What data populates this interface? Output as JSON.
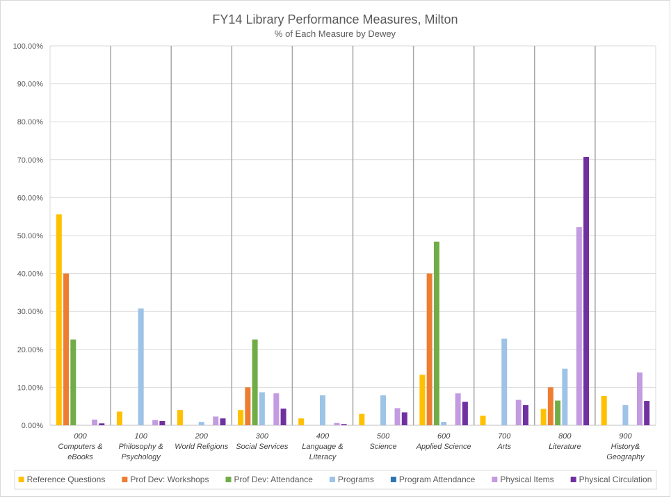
{
  "chart_data": {
    "type": "bar",
    "title": "FY14 Library Performance Measures, Milton",
    "subtitle": "% of Each Measure by Dewey",
    "xlabel": "",
    "ylabel": "",
    "ylim": [
      0,
      100
    ],
    "yticks": [
      "0.00%",
      "10.00%",
      "20.00%",
      "30.00%",
      "40.00%",
      "50.00%",
      "60.00%",
      "70.00%",
      "80.00%",
      "90.00%",
      "100.00%"
    ],
    "grid": true,
    "legend_position": "bottom",
    "categories": [
      {
        "code": "000",
        "name": [
          "Computers &",
          "eBooks"
        ]
      },
      {
        "code": "100",
        "name": [
          "Philosophy &",
          "Psychology"
        ]
      },
      {
        "code": "200",
        "name": [
          "World Religions"
        ]
      },
      {
        "code": "300",
        "name": [
          "Social Services"
        ]
      },
      {
        "code": "400",
        "name": [
          "Language &",
          "Literacy"
        ]
      },
      {
        "code": "500",
        "name": [
          "Science"
        ]
      },
      {
        "code": "600",
        "name": [
          "Applied Science"
        ]
      },
      {
        "code": "700",
        "name": [
          "Arts"
        ]
      },
      {
        "code": "800",
        "name": [
          "Literature"
        ]
      },
      {
        "code": "900",
        "name": [
          "History&",
          "Geography"
        ]
      }
    ],
    "series": [
      {
        "name": "Reference Questions",
        "color": "#FFC000",
        "values": [
          55.6,
          3.6,
          4.0,
          4.0,
          1.8,
          3.0,
          13.3,
          2.5,
          4.3,
          7.7
        ]
      },
      {
        "name": "Prof Dev: Workshops",
        "color": "#ED7D31",
        "values": [
          40.0,
          0,
          0,
          10.0,
          0,
          0,
          40.0,
          0,
          10.0,
          0
        ]
      },
      {
        "name": "Prof Dev: Attendance",
        "color": "#70AD47",
        "values": [
          22.6,
          0,
          0,
          22.6,
          0,
          0,
          48.4,
          0,
          6.5,
          0
        ]
      },
      {
        "name": "Programs",
        "color": "#9DC3E6",
        "values": [
          0,
          30.8,
          0.9,
          8.7,
          7.9,
          7.9,
          0.9,
          22.8,
          14.9,
          5.3
        ]
      },
      {
        "name": "Program Attendance",
        "color": "#2E75B6",
        "values": [
          0,
          0,
          0,
          0,
          0,
          0,
          0,
          0,
          0,
          0
        ]
      },
      {
        "name": "Physical Items",
        "color": "#C39BE1",
        "values": [
          1.5,
          1.4,
          2.3,
          8.4,
          0.6,
          4.5,
          8.4,
          6.7,
          52.2,
          13.9
        ]
      },
      {
        "name": "Physical Circulation",
        "color": "#7030A0",
        "values": [
          0.5,
          1.1,
          1.8,
          4.4,
          0.3,
          3.4,
          6.2,
          5.3,
          70.7,
          6.4
        ]
      }
    ]
  }
}
